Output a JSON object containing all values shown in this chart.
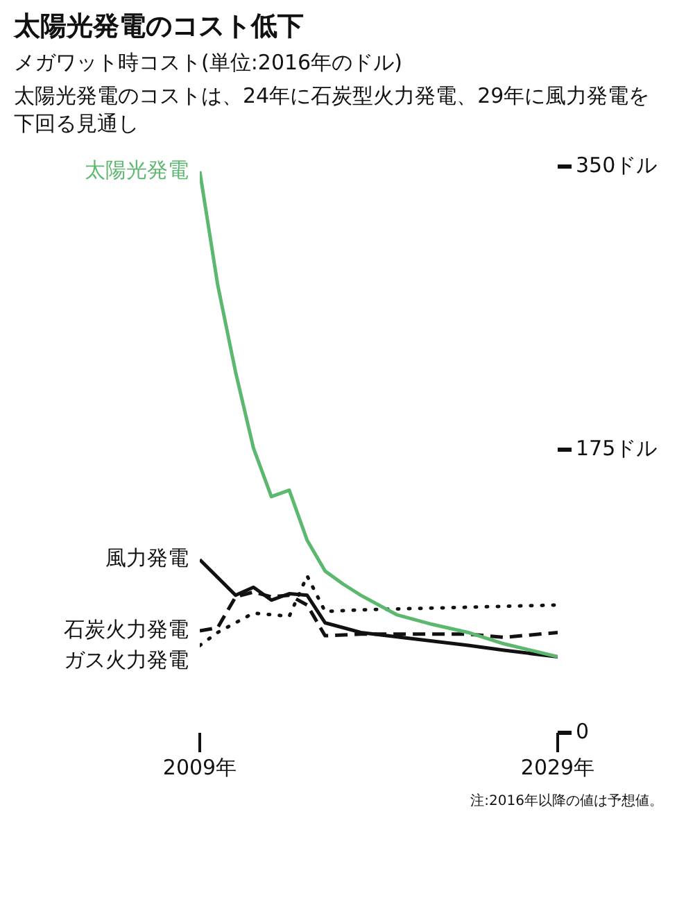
{
  "chart_data": {
    "type": "line",
    "title": "太陽光発電のコスト低下",
    "subtitle": "メガワット時コスト(単位:2016年のドル)",
    "annotations": [
      "太陽光発電のコストは、24年に石炭型火力発電、29年に風力発電を下回る見通し",
      "注:2016年以降の値は予想値。"
    ],
    "series": [
      {
        "name": "太陽光発電",
        "color": "#5cb86e",
        "line_style": "solid",
        "x": [
          2009,
          2010,
          2011,
          2012,
          2013,
          2014,
          2015,
          2016,
          2017,
          2018,
          2020,
          2022,
          2024,
          2026,
          2029
        ],
        "values": [
          347,
          277,
          223,
          176,
          146,
          150,
          119,
          100,
          92,
          85,
          73,
          67,
          62,
          55,
          47
        ]
      },
      {
        "name": "風力発電",
        "color": "#111111",
        "line_style": "solid",
        "x": [
          2009,
          2011,
          2012,
          2013,
          2014,
          2015,
          2016,
          2018,
          2021,
          2024,
          2026,
          2029
        ],
        "values": [
          107,
          85,
          90,
          82,
          86,
          85,
          68,
          62,
          58,
          54,
          51,
          47
        ]
      },
      {
        "name": "石炭火力発電",
        "color": "#111111",
        "line_style": "dashed",
        "x": [
          2009,
          2010,
          2011,
          2012,
          2013,
          2014,
          2015,
          2016,
          2018,
          2024,
          2026,
          2029
        ],
        "values": [
          63,
          65,
          84,
          87,
          84,
          85,
          79,
          60,
          61,
          61,
          59,
          62
        ]
      },
      {
        "name": "ガス火力発電",
        "color": "#111111",
        "line_style": "dotted",
        "x": [
          2009,
          2010,
          2012,
          2014,
          2015,
          2016,
          2018,
          2029
        ],
        "values": [
          54,
          62,
          74,
          72,
          97,
          75,
          76,
          79
        ]
      }
    ],
    "xlim": [
      2009,
      2029
    ],
    "xticks": [
      {
        "value": 2009,
        "label": "2009年"
      },
      {
        "value": 2029,
        "label": "2029年"
      }
    ],
    "ylim": [
      0,
      350
    ],
    "yticks": [
      {
        "value": 0,
        "label": "0"
      },
      {
        "value": 175,
        "label": "175ドル"
      },
      {
        "value": 350,
        "label": "350ドル"
      }
    ],
    "grid": false,
    "legend": false,
    "marker": "none"
  }
}
